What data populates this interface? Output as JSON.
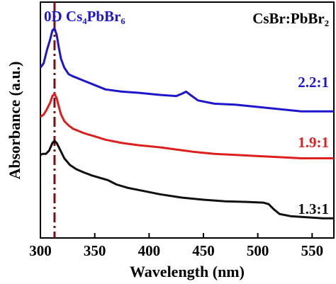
{
  "chart_data": {
    "type": "line",
    "title": "",
    "xlabel": "Wavelength (nm)",
    "ylabel": "Absorbance (a.u.)",
    "xlim": [
      300,
      570
    ],
    "xticks": [
      300,
      350,
      400,
      450,
      500,
      550
    ],
    "yticks": [],
    "grid": false,
    "legend_title": "CsBr:PbBr₂",
    "marker_label": "0D Cs₄PbBr₆",
    "marker_x": 313,
    "marker_color": "#7a1010",
    "series": [
      {
        "name": "2.2:1",
        "color": "#1f16cc",
        "x": [
          300,
          303,
          306,
          309,
          311,
          313,
          315,
          317,
          319,
          322,
          326,
          330,
          335,
          340,
          350,
          360,
          375,
          390,
          410,
          425,
          430,
          434,
          438,
          445,
          460,
          480,
          500,
          520,
          540,
          560,
          570
        ],
        "y": [
          7.0,
          7.2,
          7.8,
          8.3,
          8.7,
          8.8,
          8.5,
          7.9,
          7.4,
          7.0,
          6.7,
          6.6,
          6.5,
          6.4,
          6.2,
          6.0,
          5.9,
          5.85,
          5.75,
          5.7,
          5.8,
          5.9,
          5.75,
          5.5,
          5.35,
          5.3,
          5.2,
          5.1,
          5.0,
          5.0,
          5.0
        ]
      },
      {
        "name": "1.9:1",
        "color": "#dd1f1f",
        "x": [
          300,
          303,
          306,
          309,
          311,
          313,
          315,
          317,
          319,
          322,
          326,
          330,
          335,
          340,
          350,
          360,
          375,
          390,
          410,
          425,
          440,
          460,
          480,
          500,
          520,
          540,
          560,
          570
        ],
        "y": [
          4.75,
          4.85,
          5.1,
          5.4,
          5.7,
          5.8,
          5.6,
          5.2,
          4.85,
          4.55,
          4.35,
          4.2,
          4.1,
          4.0,
          3.85,
          3.7,
          3.55,
          3.45,
          3.35,
          3.25,
          3.15,
          3.05,
          3.0,
          2.95,
          2.9,
          2.85,
          2.85,
          2.85
        ]
      },
      {
        "name": "1.3:1",
        "color": "#111111",
        "x": [
          300,
          302,
          305,
          308,
          311,
          313,
          315,
          318,
          322,
          327,
          333,
          340,
          348,
          355,
          362,
          370,
          380,
          395,
          410,
          430,
          450,
          470,
          490,
          505,
          510,
          515,
          520,
          530,
          545,
          560,
          570
        ],
        "y": [
          3.0,
          3.05,
          3.05,
          3.2,
          3.55,
          3.65,
          3.55,
          3.25,
          2.85,
          2.55,
          2.35,
          2.2,
          2.05,
          1.95,
          1.85,
          1.65,
          1.5,
          1.35,
          1.2,
          1.05,
          0.95,
          0.88,
          0.85,
          0.82,
          0.75,
          0.5,
          0.3,
          0.2,
          0.15,
          0.1,
          0.1
        ]
      }
    ]
  }
}
